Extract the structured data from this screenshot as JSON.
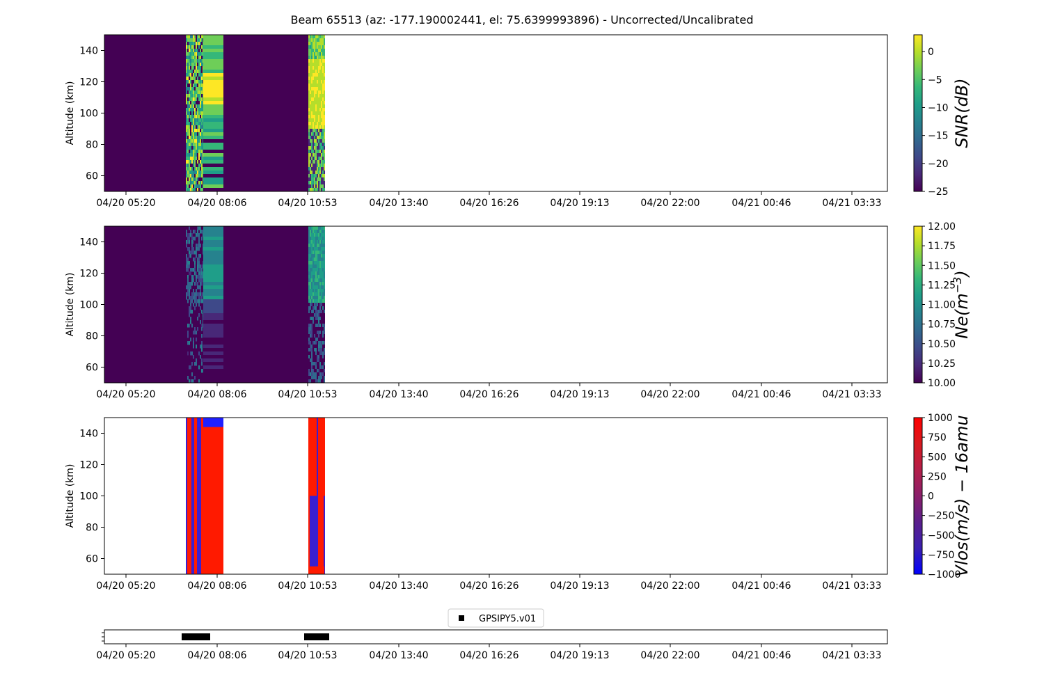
{
  "figure": {
    "title": "Beam 65513 (az: -177.190002441, el: 75.6399993896) - Uncorrected/Uncalibrated"
  },
  "chart_data": [
    {
      "type": "heatmap",
      "name": "snr",
      "ylabel": "Altitude (km)",
      "ylim": [
        50,
        150
      ],
      "yticks": [
        "60",
        "80",
        "100",
        "120",
        "140"
      ],
      "xticks": [
        "04/20 05:20",
        "04/20 08:06",
        "04/20 10:53",
        "04/20 13:40",
        "04/20 16:26",
        "04/20 19:13",
        "04/20 22:00",
        "04/21 00:46",
        "04/21 03:33"
      ],
      "colormap": "viridis",
      "colorbar": {
        "label": "SNR(dB)",
        "range": [
          -25,
          3
        ],
        "ticks": [
          "0",
          "−5",
          "−10",
          "−15",
          "−20",
          "−25"
        ]
      },
      "data_blocks": [
        {
          "start": "04/20 07:05",
          "end": "04/20 08:16",
          "level": "mixed -25 to 3, brightest ~125-100 km"
        },
        {
          "start": "04/20 10:53",
          "end": "04/20 11:24",
          "level": "mostly ~3, noisy near bottom"
        }
      ]
    },
    {
      "type": "heatmap",
      "name": "ne",
      "ylabel": "Altitude (km)",
      "ylim": [
        50,
        150
      ],
      "yticks": [
        "60",
        "80",
        "100",
        "120",
        "140"
      ],
      "xticks": [
        "04/20 05:20",
        "04/20 08:06",
        "04/20 10:53",
        "04/20 13:40",
        "04/20 16:26",
        "04/20 19:13",
        "04/20 22:00",
        "04/21 00:46",
        "04/21 03:33"
      ],
      "colormap": "viridis",
      "colorbar": {
        "label": "Ne(m^-3)",
        "range": [
          10,
          12
        ],
        "ticks": [
          "12.00",
          "11.75",
          "11.50",
          "11.25",
          "11.00",
          "10.75",
          "10.50",
          "10.25",
          "10.00"
        ]
      },
      "data_blocks": [
        {
          "start": "04/20 05:20",
          "end": "04/20 11:24",
          "level": "~10-11, higher above 100 km"
        }
      ]
    },
    {
      "type": "heatmap",
      "name": "vlos",
      "ylabel": "Altitude (km)",
      "ylim": [
        50,
        150
      ],
      "yticks": [
        "60",
        "80",
        "100",
        "120",
        "140"
      ],
      "xticks": [
        "04/20 05:20",
        "04/20 08:06",
        "04/20 10:53",
        "04/20 13:40",
        "04/20 16:26",
        "04/20 19:13",
        "04/20 22:00",
        "04/21 00:46",
        "04/21 03:33"
      ],
      "colormap": "bwr",
      "colorbar": {
        "label": "Vlos(m/s) − 16amu",
        "range": [
          -1000,
          1000
        ],
        "ticks": [
          "1000",
          "750",
          "500",
          "250",
          "0",
          "−250",
          "−500",
          "−750",
          "−1000"
        ]
      },
      "data_blocks": [
        {
          "start": "04/20 07:05",
          "end": "04/20 08:16",
          "level": "alternating ±1000, +1000 mostly"
        },
        {
          "start": "04/20 10:53",
          "end": "04/20 11:24",
          "level": "alternating ±1000"
        }
      ]
    },
    {
      "type": "scatter",
      "name": "gps",
      "series": [
        {
          "name": "GPSIPY5.v01",
          "segments": [
            [
              "04/20 07:00",
              "04/20 07:45"
            ],
            [
              "04/20 10:53",
              "04/20 11:30"
            ]
          ]
        }
      ],
      "xticks": [
        "04/20 05:20",
        "04/20 08:06",
        "04/20 10:53",
        "04/20 13:40",
        "04/20 16:26",
        "04/20 19:13",
        "04/20 22:00",
        "04/21 00:46",
        "04/21 03:33"
      ],
      "legend": "top-center"
    }
  ]
}
